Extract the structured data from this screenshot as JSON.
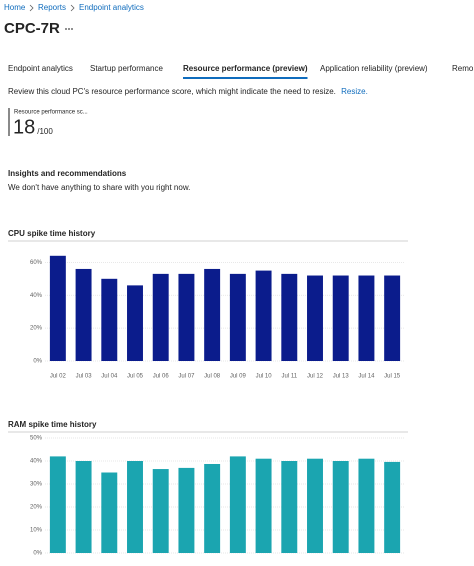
{
  "breadcrumb": [
    "Home",
    "Reports",
    "Endpoint analytics"
  ],
  "header": {
    "title": "CPC-7R"
  },
  "tabs": [
    "Endpoint analytics",
    "Startup performance",
    "Resource performance (preview)",
    "Application reliability (preview)",
    "Remo"
  ],
  "selected_tab": 2,
  "description": {
    "text": "Review this cloud PC's resource performance score, which might indicate the need to resize.",
    "link": "Resize."
  },
  "score": {
    "label": "Resource performance sc...",
    "value": 18,
    "max": "/100"
  },
  "insights": {
    "title": "Insights and recommendations",
    "text": "We don't have anything to share with you right now."
  },
  "charts": [
    {
      "type": "bar",
      "title": "CPU spike time history",
      "categories": [
        "Jul 02",
        "Jul 03",
        "Jul 04",
        "Jul 05",
        "Jul 06",
        "Jul 07",
        "Jul 08",
        "Jul 09",
        "Jul 10",
        "Jul 11",
        "Jul 12",
        "Jul 13",
        "Jul 14",
        "Jul 15"
      ],
      "values": [
        64,
        56,
        50,
        46,
        53,
        53,
        56,
        53,
        55,
        53,
        52,
        52,
        52,
        52
      ],
      "color": "#0b1c8c",
      "ylim": [
        0,
        73
      ],
      "yticks": [
        {
          "value": 0,
          "label": "0%"
        },
        {
          "value": 20,
          "label": "20%"
        },
        {
          "value": 40,
          "label": "40%"
        },
        {
          "value": 60,
          "label": "60%"
        }
      ],
      "grid": true
    },
    {
      "type": "bar",
      "title": "RAM spike time history",
      "categories": [
        null,
        null,
        null,
        null,
        null,
        null,
        null,
        null,
        null,
        null,
        null,
        null,
        null,
        null
      ],
      "values": [
        42,
        40,
        35,
        40,
        36.5,
        37,
        38.7,
        42,
        41,
        40,
        41,
        40,
        41,
        39.6
      ],
      "color": "#1ba5b0",
      "ylim": [
        0,
        50
      ],
      "yticks": [
        {
          "value": 0,
          "label": "0%"
        },
        {
          "value": 10,
          "label": "10%"
        },
        {
          "value": 20,
          "label": "20%"
        },
        {
          "value": 30,
          "label": "30%"
        },
        {
          "value": 40,
          "label": "40%"
        },
        {
          "value": 50,
          "label": "50%"
        }
      ],
      "grid": true
    }
  ]
}
